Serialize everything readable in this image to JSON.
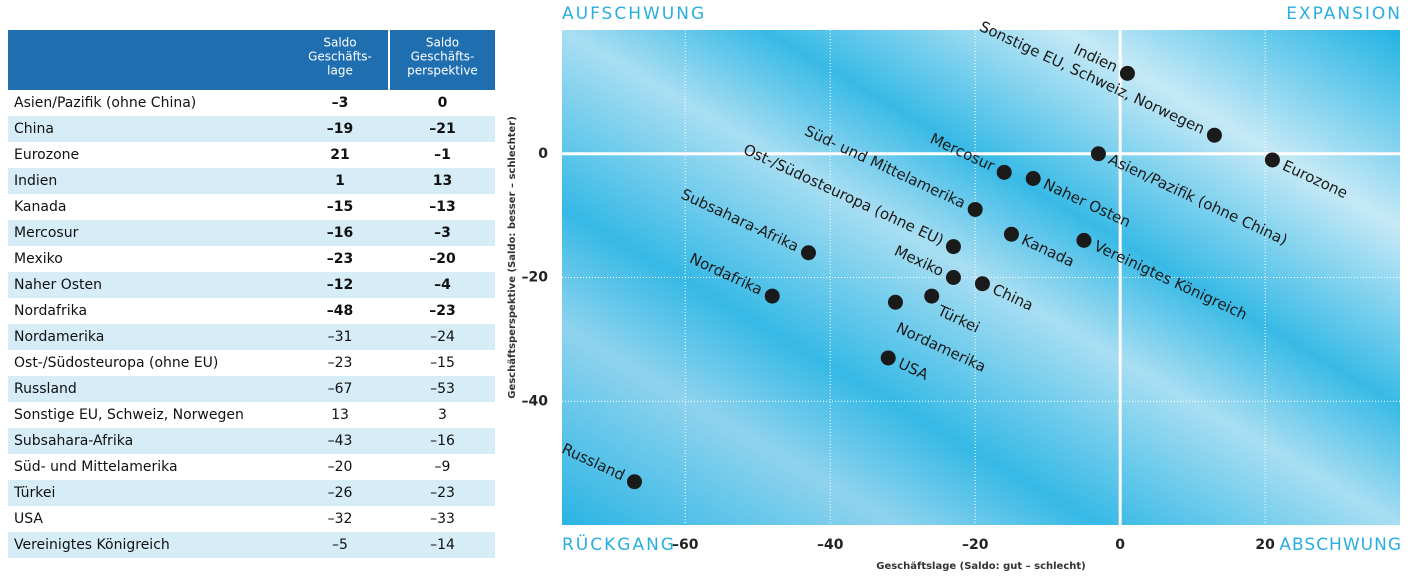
{
  "table": {
    "header": [
      [
        "Saldo",
        "Geschäfts-",
        "lage"
      ],
      [
        "Saldo",
        "Geschäfts-",
        "perspektive"
      ]
    ],
    "rows": [
      [
        "Asien/Pazifik (ohne China)",
        "–3",
        "0"
      ],
      [
        "China",
        "–19",
        "–21"
      ],
      [
        "Eurozone",
        "21",
        "–1"
      ],
      [
        "Indien",
        "1",
        "13"
      ],
      [
        "Kanada",
        "–15",
        "–13"
      ],
      [
        "Mercosur",
        "–16",
        "–3"
      ],
      [
        "Mexiko",
        "–23",
        "–20"
      ],
      [
        "Naher Osten",
        "–12",
        "–4"
      ],
      [
        "Nordafrika",
        "–48",
        "–23"
      ],
      [
        "Nordamerika",
        "–31",
        "–24"
      ],
      [
        "Ost-/Südosteuropa (ohne EU)",
        "–23",
        "–15"
      ],
      [
        "Russland",
        "–67",
        "–53"
      ],
      [
        "Sonstige EU, Schweiz, Norwegen",
        "13",
        "3"
      ],
      [
        "Subsahara-Afrika",
        "–43",
        "–16"
      ],
      [
        "Süd- und Mittelamerika",
        "–20",
        "–9"
      ],
      [
        "Türkei",
        "–26",
        "–23"
      ],
      [
        "USA",
        "–32",
        "–33"
      ],
      [
        "Vereinigtes Königreich",
        "–5",
        "–14"
      ]
    ],
    "bold_rows": 9
  },
  "chart_data": {
    "type": "scatter",
    "xlabel": "Geschäftslage (Saldo: gut – schlecht)",
    "ylabel": "Geschäftsperspektive (Saldo: besser – schlechter)",
    "quadrants": {
      "top_left": "AUFSCHWUNG",
      "top_right": "EXPANSION",
      "bottom_left": "RÜCKGANG",
      "bottom_right": "ABSCHWUNG"
    },
    "labels": [
      "Asien/Pazifik (ohne China)",
      "China",
      "Eurozone",
      "Indien",
      "Kanada",
      "Mercosur",
      "Mexiko",
      "Naher Osten",
      "Nordafrika",
      "Nordamerika",
      "Ost-/Südosteuropa (ohne EU)",
      "Russland",
      "Sonstige EU, Schweiz, Norwegen",
      "Subsahara-Afrika",
      "Süd- und Mittelamerika",
      "Türkei",
      "USA",
      "Vereinigtes Königreich"
    ],
    "x": [
      -3,
      -19,
      21,
      1,
      -15,
      -16,
      -23,
      -12,
      -48,
      -31,
      -23,
      -67,
      13,
      -43,
      -20,
      -26,
      -32,
      -5
    ],
    "y": [
      0,
      -21,
      -1,
      13,
      -13,
      -3,
      -20,
      -4,
      -23,
      -24,
      -15,
      -53,
      3,
      -16,
      -9,
      -23,
      -33,
      -14
    ],
    "color": "#1a1a1a",
    "xlim": [
      -77,
      38.6
    ],
    "ylim": [
      -60,
      20
    ],
    "xticks": [
      {
        "value": -60,
        "label": "–60"
      },
      {
        "value": -40,
        "label": "–40"
      },
      {
        "value": -20,
        "label": "–20"
      },
      0,
      20
    ],
    "yticks": [
      {
        "value": -40,
        "label": "–40"
      },
      {
        "value": -20,
        "label": "–20"
      },
      0
    ],
    "grid": true
  }
}
